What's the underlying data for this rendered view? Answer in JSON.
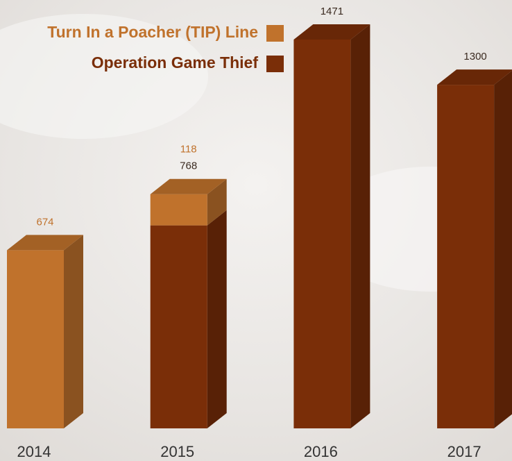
{
  "chart_data": {
    "type": "bar3d_stacked",
    "categories": [
      "2014",
      "2015",
      "2016",
      "2017"
    ],
    "series": [
      {
        "name": "Turn In a Poacher (TIP) Line",
        "color": "#c0722c",
        "values": [
          674,
          118,
          null,
          null
        ]
      },
      {
        "name": "Operation Game Thief",
        "color": "#7a2e08",
        "values": [
          null,
          768,
          1471,
          1300
        ]
      }
    ],
    "legend": "top-left"
  }
}
